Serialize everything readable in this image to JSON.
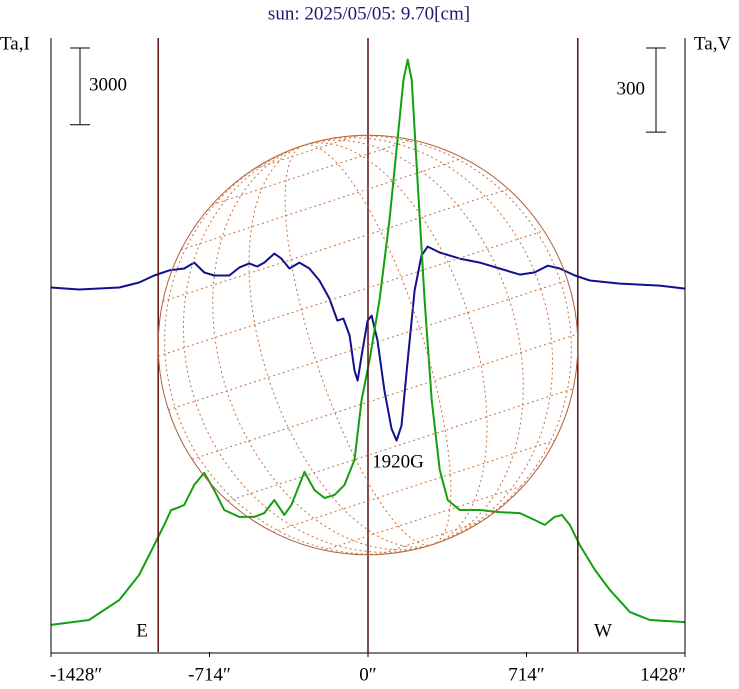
{
  "chart_data": {
    "type": "line",
    "title": "sun: 2025/05/05: 9.70[cm]",
    "y_label": "Ta,I",
    "y2_label": "Ta,V",
    "xlim": [
      -1428,
      1428
    ],
    "xticks": [
      {
        "value": -1428,
        "label": "-1428″"
      },
      {
        "value": -714,
        "label": "-714″"
      },
      {
        "value": 0,
        "label": "0″"
      },
      {
        "value": 714,
        "label": "714″"
      },
      {
        "value": 1428,
        "label": "1428″"
      }
    ],
    "ylim": [
      0,
      24000
    ],
    "y2lim": [
      -1300,
      890
    ],
    "scale_bar_y": 3000,
    "scale_bar_y2": 300,
    "disk_radius": 945,
    "annotations": [
      "E",
      "W",
      "1920G"
    ],
    "series": [
      {
        "color": "#10a010",
        "x": [
          -1428,
          -1257,
          -1121,
          -1031,
          -963,
          -918,
          -887,
          -860,
          -828,
          -783,
          -738,
          -693,
          -648,
          -580,
          -512,
          -467,
          -422,
          -377,
          -345,
          -286,
          -241,
          -196,
          -151,
          -106,
          -61,
          -29,
          7,
          52,
          97,
          133,
          160,
          179,
          197,
          223,
          255,
          287,
          323,
          359,
          413,
          503,
          593,
          684,
          751,
          796,
          841,
          873,
          909,
          954,
          1022,
          1090,
          1180,
          1270,
          1428
        ],
        "values": [
          1060,
          1250,
          2030,
          3010,
          4180,
          4970,
          5550,
          5630,
          5750,
          6530,
          7000,
          6330,
          5550,
          5280,
          5280,
          5430,
          5940,
          5360,
          5750,
          7040,
          6330,
          6020,
          6140,
          6530,
          7510,
          9850,
          11420,
          13760,
          16890,
          20020,
          22370,
          23150,
          22370,
          18460,
          13760,
          9850,
          7120,
          5940,
          5550,
          5550,
          5470,
          5430,
          5160,
          4970,
          5280,
          5360,
          4970,
          4180,
          3210,
          2420,
          1560,
          1250,
          1170
        ]
      },
      {
        "color": "#101090",
        "axis": "y2",
        "x": [
          -1428,
          -1302,
          -1121,
          -1031,
          -963,
          -896,
          -828,
          -783,
          -738,
          -693,
          -625,
          -580,
          -535,
          -499,
          -467,
          -422,
          -390,
          -354,
          -309,
          -264,
          -219,
          -174,
          -138,
          -111,
          -83,
          -61,
          -47,
          -29,
          -2,
          16,
          43,
          74,
          106,
          129,
          151,
          179,
          210,
          241,
          269,
          323,
          413,
          503,
          593,
          684,
          751,
          810,
          864,
          932,
          999,
          1135,
          1315,
          1428
        ],
        "values": [
          0,
          -7,
          0,
          18,
          43,
          61,
          68,
          89,
          54,
          43,
          43,
          71,
          86,
          75,
          89,
          121,
          103,
          68,
          89,
          68,
          25,
          -39,
          -118,
          -111,
          -171,
          -296,
          -332,
          -243,
          -118,
          -100,
          -189,
          -367,
          -503,
          -546,
          -492,
          -260,
          -11,
          114,
          146,
          125,
          103,
          89,
          68,
          46,
          54,
          78,
          68,
          43,
          25,
          14,
          7,
          -4
        ]
      }
    ]
  }
}
